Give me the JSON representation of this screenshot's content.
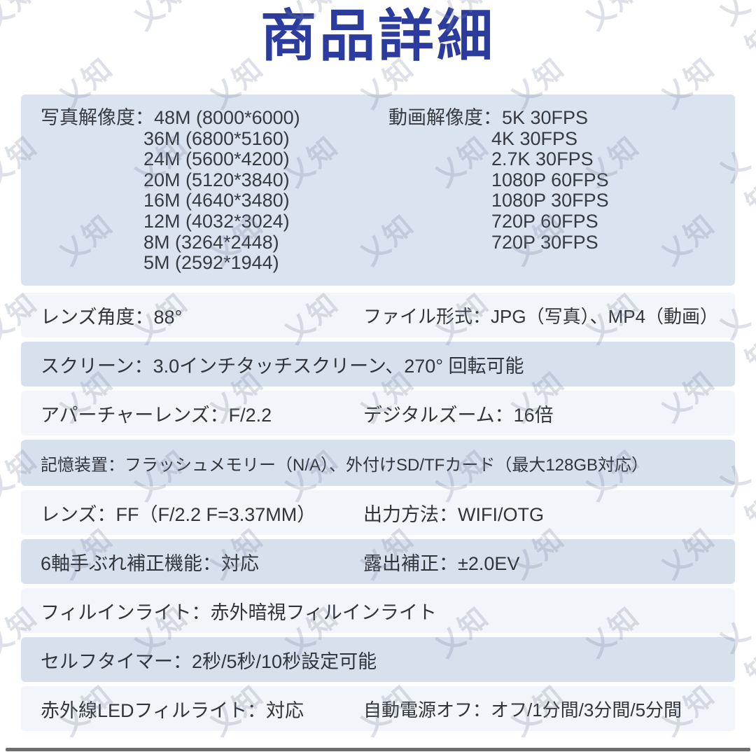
{
  "page": {
    "title": "商品詳細"
  },
  "watermark": {
    "text": "乂知"
  },
  "colors": {
    "title_blue": "#2c3b9e",
    "panel_blue": "#dae3f0",
    "row_blue": "#d7e1ee",
    "row_white": "#f2f5f9",
    "text": "#30353c",
    "bottom_bar": "#6e6e6e"
  },
  "spec_box": {
    "photo": {
      "label": "写真解像度：",
      "values": [
        "48M (8000*6000)",
        "36M (6800*5160)",
        "24M (5600*4200)",
        "20M (5120*3840)",
        "16M (4640*3480)",
        "12M (4032*3024)",
        "8M (3264*2448)",
        "5M (2592*1944)"
      ]
    },
    "video": {
      "label": "動画解像度：",
      "values": [
        "5K 30FPS",
        "4K 30FPS",
        "2.7K 30FPS",
        "1080P 60FPS",
        "1080P 30FPS",
        "720P 60FPS",
        "720P 30FPS"
      ]
    }
  },
  "rows": [
    {
      "left": "レンズ角度：88°",
      "right": "ファイル形式：JPG（写真）、MP4（動画）"
    },
    {
      "left": "スクリーン：3.0インチタッチスクリーン、270° 回転可能",
      "right": ""
    },
    {
      "left": "アパーチャーレンズ：F/2.2",
      "right": "デジタルズーム：16倍"
    },
    {
      "left": "記憶装置：フラッシュメモリー（N/A）、外付けSD/TFカード（最大128GB対応）",
      "right": ""
    },
    {
      "left": "レンズ：FF（F/2.2 F=3.37MM）",
      "right": "出力方法：WIFI/OTG"
    },
    {
      "left": "6軸手ぶれ補正機能：対応",
      "right": "露出補正：±2.0EV"
    },
    {
      "left": "フィルインライト：赤外暗視フィルインライト",
      "right": ""
    },
    {
      "left": "セルフタイマー：2秒/5秒/10秒設定可能",
      "right": ""
    },
    {
      "left": "赤外線LEDフィルライト：対応",
      "right": "自動電源オフ：オフ/1分間/3分間/5分間"
    }
  ]
}
